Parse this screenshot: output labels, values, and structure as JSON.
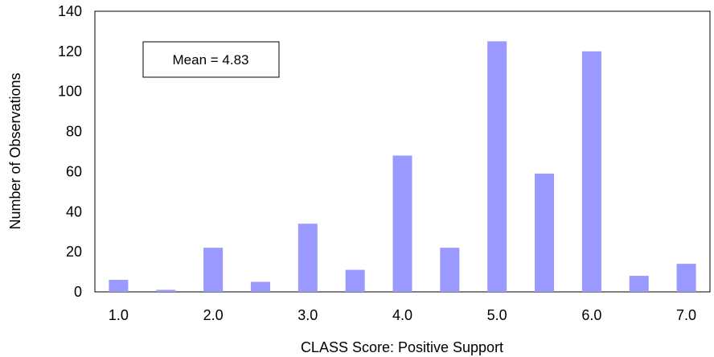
{
  "chart_data": {
    "type": "bar",
    "xlabel": "CLASS Score: Positive Support",
    "ylabel": "Number of Observations",
    "x": [
      1.0,
      1.5,
      2.0,
      2.5,
      3.0,
      3.5,
      4.0,
      4.5,
      5.0,
      5.5,
      6.0,
      6.5,
      7.0
    ],
    "values": [
      6,
      1,
      22,
      5,
      34,
      11,
      68,
      22,
      125,
      59,
      120,
      8,
      14
    ],
    "xticks": [
      "1.0",
      "2.0",
      "3.0",
      "4.0",
      "5.0",
      "6.0",
      "7.0"
    ],
    "yticks": [
      "0",
      "20",
      "40",
      "60",
      "80",
      "100",
      "120",
      "140"
    ],
    "ylim": [
      0,
      140
    ],
    "xlim": [
      0.75,
      7.25
    ],
    "annotation": "Mean = 4.83",
    "bar_color": "#9999ff",
    "grid": false
  }
}
